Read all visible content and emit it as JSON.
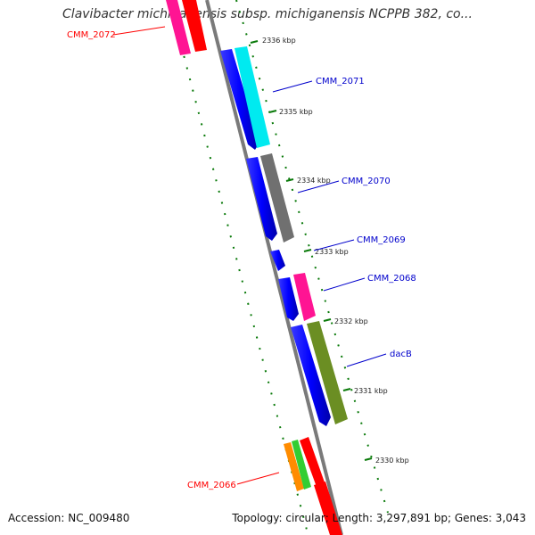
{
  "title": "Clavibacter michiganensis subsp. michiganensis NCPPB 382, co...",
  "footer": {
    "accession": "Accession: NC_009480",
    "topology": "Topology: circular; Length: 3,297,891 bp; Genes: 3,043"
  },
  "ticks": [
    "2336 kbp",
    "2335 kbp",
    "2334 kbp",
    "2333 kbp",
    "2332 kbp",
    "2331 kbp",
    "2330 kbp"
  ],
  "gene_labels": [
    {
      "text": "CMM_2072",
      "color": "#ff0000"
    },
    {
      "text": "CMM_2071",
      "color": "#0000cc"
    },
    {
      "text": "CMM_2070",
      "color": "#0000cc"
    },
    {
      "text": "CMM_2069",
      "color": "#0000cc"
    },
    {
      "text": "CMM_2068",
      "color": "#0000cc"
    },
    {
      "text": "dacB",
      "color": "#0000cc"
    },
    {
      "text": "CMM_2066",
      "color": "#ff0000"
    }
  ],
  "colors": {
    "backbone": "#808080",
    "cds": "#0000ff",
    "ticks": "#006400",
    "gene_cyan": "#00e5ee",
    "gene_gray": "#6e6e6e",
    "gene_pink": "#ff1493",
    "gene_olive": "#6b8e23",
    "gene_red": "#ff0000",
    "gene_orange": "#ff8c00",
    "gene_green": "#32cd32"
  }
}
